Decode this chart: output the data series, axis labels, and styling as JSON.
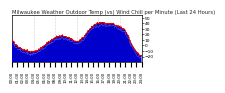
{
  "title": "Milwaukee Weather Outdoor Temp (vs) Wind Chill per Minute (Last 24 Hours)",
  "title_fontsize": 3.8,
  "title_color": "#222222",
  "bg_color": "#ffffff",
  "plot_bg_color": "#ffffff",
  "grid_color": "#aaaaaa",
  "line_color_temp": "#dd0000",
  "fill_color_wind": "#0000cc",
  "ylim": [
    -30,
    55
  ],
  "xlim": [
    0,
    1440
  ],
  "ylabel_fontsize": 3.2,
  "xlabel_fontsize": 2.8,
  "ytick_values": [
    50,
    40,
    30,
    20,
    10,
    0,
    -10,
    -20
  ],
  "num_points": 1440,
  "seed": 12345
}
